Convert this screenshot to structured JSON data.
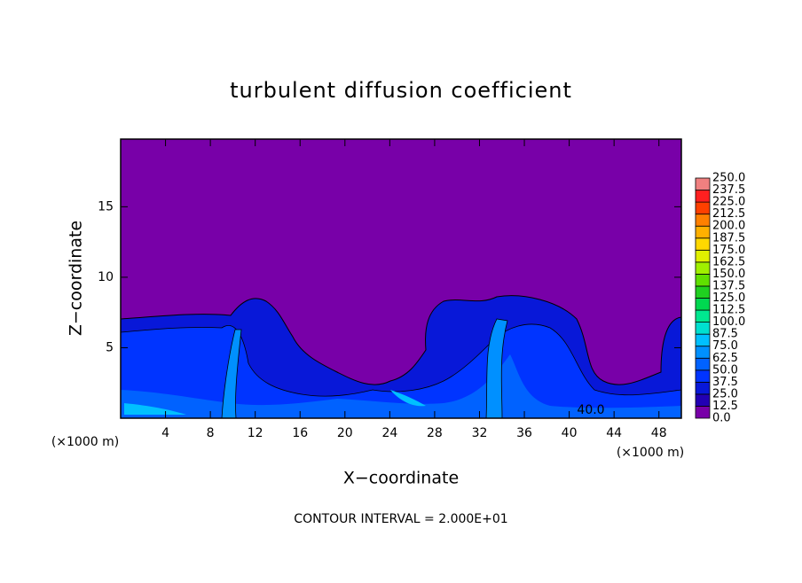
{
  "chart_data": {
    "type": "contour",
    "title": "turbulent diffusion coefficient",
    "xlabel": "X−coordinate",
    "ylabel": "Z−coordinate",
    "x_unit_label": "(×1000 m)",
    "y_unit_label": "(×1000 m)",
    "footnote": "CONTOUR INTERVAL = 2.000E+01",
    "contour_labels": [
      "40.0"
    ],
    "xlim": [
      0,
      50
    ],
    "ylim": [
      0,
      19.8
    ],
    "xticks": [
      4,
      8,
      12,
      16,
      20,
      24,
      28,
      32,
      36,
      40,
      44,
      48
    ],
    "yticks": [
      5,
      10,
      15
    ],
    "colorbar": {
      "levels": [
        {
          "value": 0,
          "label": "0.0"
        },
        {
          "value": 12.5,
          "label": "12.5"
        },
        {
          "value": 25,
          "label": "25.0"
        },
        {
          "value": 37.5,
          "label": "37.5"
        },
        {
          "value": 50,
          "label": "50.0"
        },
        {
          "value": 62.5,
          "label": "62.5"
        },
        {
          "value": 75,
          "label": "75.0"
        },
        {
          "value": 87.5,
          "label": "87.5"
        },
        {
          "value": 100,
          "label": "100.0"
        },
        {
          "value": 112.5,
          "label": "112.5"
        },
        {
          "value": 125,
          "label": "125.0"
        },
        {
          "value": 137.5,
          "label": "137.5"
        },
        {
          "value": 150,
          "label": "150.0"
        },
        {
          "value": 162.5,
          "label": "162.5"
        },
        {
          "value": 175,
          "label": "175.0"
        },
        {
          "value": 187.5,
          "label": "187.5"
        },
        {
          "value": 200,
          "label": "200.0"
        },
        {
          "value": 212.5,
          "label": "212.5"
        },
        {
          "value": 225,
          "label": "225.0"
        },
        {
          "value": 237.5,
          "label": "237.5"
        },
        {
          "value": 250,
          "label": "250.0"
        }
      ],
      "colors": [
        "#7800a8",
        "#2200b4",
        "#0818d8",
        "#0034ff",
        "#0062ff",
        "#0090ff",
        "#00c0ff",
        "#00e0d0",
        "#00e890",
        "#00d850",
        "#20d020",
        "#60e000",
        "#a0f000",
        "#e0f000",
        "#ffd800",
        "#ffb000",
        "#ff8000",
        "#ff4000",
        "#ff2020",
        "#f08080"
      ]
    }
  }
}
